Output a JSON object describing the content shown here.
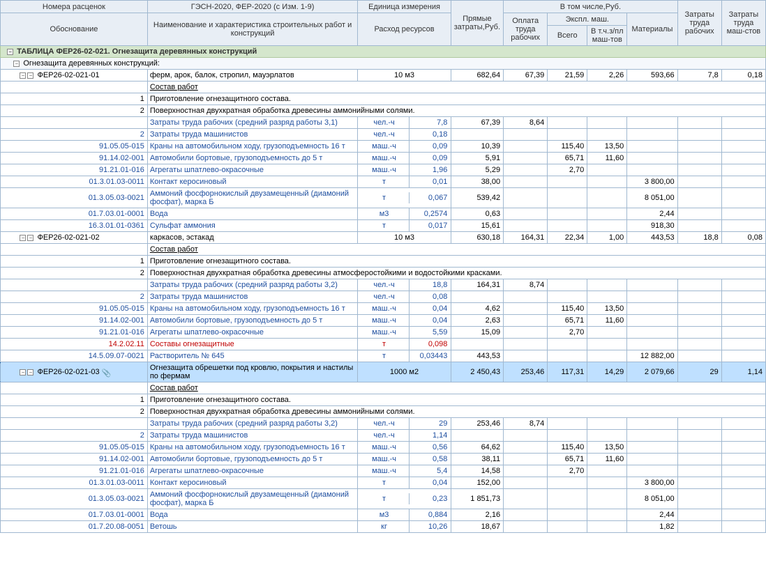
{
  "hdr": {
    "c1a": "Номера расценок",
    "c1b": "Обоснование",
    "c2a": "ГЭСН-2020, ФЕР-2020 (с Изм. 1-9)",
    "c2b": "Наименование и характеристика строительных работ и конструкций",
    "c3a": "Единица измерения",
    "c3b": "Расход ресурсов",
    "c4": "Прямые затраты,Руб.",
    "g1": "В том числе,Руб.",
    "c5": "Оплата труда рабочих",
    "g2": "Экспл. маш.",
    "c8": "Материалы",
    "c6": "Всего",
    "c7": "В т.ч.з/пл маш-тов",
    "c9": "Затраты труда рабочих",
    "c10": "Затраты труда маш-стов"
  },
  "tableTitle": "ТАБЛИЦА ФЕР26-02-021. Огнезащита деревянных конструкций",
  "subTitle": "Огнезащита деревянных конструкций:",
  "sostav": "Состав работ",
  "rows": [
    {
      "t": "main",
      "code": "ФЕР26-02-021-01",
      "name": "ферм, арок, балок, стропил, мауэрлатов",
      "unit": "10 м3",
      "v4": "682,64",
      "v5": "67,39",
      "v6": "21,59",
      "v7": "2,26",
      "v8": "593,66",
      "v9": "7,8",
      "v10": "0,18"
    },
    {
      "t": "sost"
    },
    {
      "t": "step",
      "n": "1",
      "name": "Приготовление огнезащитного состава."
    },
    {
      "t": "step",
      "n": "2",
      "name": "Поверхностная двухкратная обработка древесины аммонийными солями."
    },
    {
      "t": "res",
      "name": "Затраты труда рабочих (средний разряд работы 3,1)",
      "unit": "чел.-ч",
      "q": "7,8",
      "v4": "67,39",
      "v5": "8,64"
    },
    {
      "t": "res",
      "n": "2",
      "name": "Затраты труда машинистов",
      "unit": "чел.-ч",
      "q": "0,18"
    },
    {
      "t": "res",
      "code": "91.05.05-015",
      "name": "Краны на автомобильном ходу, грузоподъемность 16 т",
      "unit": "маш.-ч",
      "q": "0,09",
      "v4": "10,39",
      "v6": "115,40",
      "v7": "13,50"
    },
    {
      "t": "res",
      "code": "91.14.02-001",
      "name": "Автомобили бортовые, грузоподъемность до 5 т",
      "unit": "маш.-ч",
      "q": "0,09",
      "v4": "5,91",
      "v6": "65,71",
      "v7": "11,60"
    },
    {
      "t": "res",
      "code": "91.21.01-016",
      "name": "Агрегаты шпатлево-окрасочные",
      "unit": "маш.-ч",
      "q": "1,96",
      "v4": "5,29",
      "v6": "2,70"
    },
    {
      "t": "res",
      "code": "01.3.01.03-0011",
      "name": "Контакт керосиновый",
      "unit": "т",
      "q": "0,01",
      "v4": "38,00",
      "v8": "3 800,00"
    },
    {
      "t": "res",
      "code": "01.3.05.03-0021",
      "name": "Аммоний фосфорнокислый двузамещенный (диамоний фосфат), марка Б",
      "unit": "т",
      "q": "0,067",
      "v4": "539,42",
      "v8": "8 051,00",
      "wrap": 1
    },
    {
      "t": "res",
      "code": "01.7.03.01-0001",
      "name": "Вода",
      "unit": "м3",
      "q": "0,2574",
      "v4": "0,63",
      "v8": "2,44"
    },
    {
      "t": "res",
      "code": "16.3.01.01-0361",
      "name": "Сульфат аммония",
      "unit": "т",
      "q": "0,017",
      "v4": "15,61",
      "v8": "918,30"
    },
    {
      "t": "main",
      "code": "ФЕР26-02-021-02",
      "name": "каркасов, эстакад",
      "unit": "10 м3",
      "v4": "630,18",
      "v5": "164,31",
      "v6": "22,34",
      "v7": "1,00",
      "v8": "443,53",
      "v9": "18,8",
      "v10": "0,08"
    },
    {
      "t": "sost"
    },
    {
      "t": "step",
      "n": "1",
      "name": "Приготовление огнезащитного состава."
    },
    {
      "t": "step",
      "n": "2",
      "name": "Поверхностная двухкратная обработка древесины атмосферостойкими и водостойкими красками."
    },
    {
      "t": "res",
      "name": "Затраты труда рабочих (средний разряд работы 3,2)",
      "unit": "чел.-ч",
      "q": "18,8",
      "v4": "164,31",
      "v5": "8,74"
    },
    {
      "t": "res",
      "n": "2",
      "name": "Затраты труда машинистов",
      "unit": "чел.-ч",
      "q": "0,08"
    },
    {
      "t": "res",
      "code": "91.05.05-015",
      "name": "Краны на автомобильном ходу, грузоподъемность 16 т",
      "unit": "маш.-ч",
      "q": "0,04",
      "v4": "4,62",
      "v6": "115,40",
      "v7": "13,50"
    },
    {
      "t": "res",
      "code": "91.14.02-001",
      "name": "Автомобили бортовые, грузоподъемность до 5 т",
      "unit": "маш.-ч",
      "q": "0,04",
      "v4": "2,63",
      "v6": "65,71",
      "v7": "11,60"
    },
    {
      "t": "res",
      "code": "91.21.01-016",
      "name": "Агрегаты шпатлево-окрасочные",
      "unit": "маш.-ч",
      "q": "5,59",
      "v4": "15,09",
      "v6": "2,70"
    },
    {
      "t": "res",
      "code": "14.2.02.11",
      "name": "Составы огнезащитные",
      "unit": "т",
      "q": "0,098",
      "red": 1
    },
    {
      "t": "res",
      "code": "14.5.09.07-0021",
      "name": "Растворитель № 645",
      "unit": "т",
      "q": "0,03443",
      "v4": "443,53",
      "v8": "12 882,00"
    },
    {
      "t": "main",
      "code": "ФЕР26-02-021-03",
      "name": "Огнезащита обрешетки под кровлю, покрытия и настилы по фермам",
      "unit": "1000 м2",
      "v4": "2 450,43",
      "v5": "253,46",
      "v6": "117,31",
      "v7": "14,29",
      "v8": "2 079,66",
      "v9": "29",
      "v10": "1,14",
      "sel": 1,
      "wrap": 1,
      "clip": 1
    },
    {
      "t": "sost"
    },
    {
      "t": "step",
      "n": "1",
      "name": "Приготовление огнезащитного состава."
    },
    {
      "t": "step",
      "n": "2",
      "name": "Поверхностная двухкратная обработка древесины аммонийными солями."
    },
    {
      "t": "res",
      "name": "Затраты труда рабочих (средний разряд работы 3,2)",
      "unit": "чел.-ч",
      "q": "29",
      "v4": "253,46",
      "v5": "8,74"
    },
    {
      "t": "res",
      "n": "2",
      "name": "Затраты труда машинистов",
      "unit": "чел.-ч",
      "q": "1,14"
    },
    {
      "t": "res",
      "code": "91.05.05-015",
      "name": "Краны на автомобильном ходу, грузоподъемность 16 т",
      "unit": "маш.-ч",
      "q": "0,56",
      "v4": "64,62",
      "v6": "115,40",
      "v7": "13,50"
    },
    {
      "t": "res",
      "code": "91.14.02-001",
      "name": "Автомобили бортовые, грузоподъемность до 5 т",
      "unit": "маш.-ч",
      "q": "0,58",
      "v4": "38,11",
      "v6": "65,71",
      "v7": "11,60"
    },
    {
      "t": "res",
      "code": "91.21.01-016",
      "name": "Агрегаты шпатлево-окрасочные",
      "unit": "маш.-ч",
      "q": "5,4",
      "v4": "14,58",
      "v6": "2,70"
    },
    {
      "t": "res",
      "code": "01.3.01.03-0011",
      "name": "Контакт керосиновый",
      "unit": "т",
      "q": "0,04",
      "v4": "152,00",
      "v8": "3 800,00"
    },
    {
      "t": "res",
      "code": "01.3.05.03-0021",
      "name": "Аммоний фосфорнокислый двузамещенный (диамоний фосфат), марка Б",
      "unit": "т",
      "q": "0,23",
      "v4": "1 851,73",
      "v8": "8 051,00",
      "wrap": 1
    },
    {
      "t": "res",
      "code": "01.7.03.01-0001",
      "name": "Вода",
      "unit": "м3",
      "q": "0,884",
      "v4": "2,16",
      "v8": "2,44"
    },
    {
      "t": "res",
      "code": "01.7.20.08-0051",
      "name": "Ветошь",
      "unit": "кг",
      "q": "10,26",
      "v4": "18,67",
      "v8": "1,82"
    }
  ]
}
